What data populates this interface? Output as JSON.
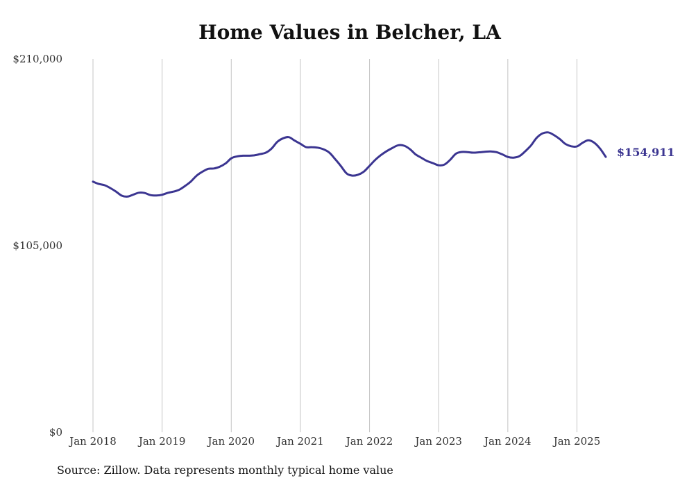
{
  "chart_data": {
    "type": "line",
    "title": "Home Values in Belcher, LA",
    "xlabel": "",
    "ylabel": "",
    "ylim": [
      0,
      210000
    ],
    "y_ticks": [
      {
        "value": 0,
        "label": "$0"
      },
      {
        "value": 105000,
        "label": "$105,000"
      },
      {
        "value": 210000,
        "label": "$210,000"
      }
    ],
    "x_ticks": [
      {
        "date": "2018-01",
        "label": "Jan 2018"
      },
      {
        "date": "2019-01",
        "label": "Jan 2019"
      },
      {
        "date": "2020-01",
        "label": "Jan 2020"
      },
      {
        "date": "2021-01",
        "label": "Jan 2021"
      },
      {
        "date": "2022-01",
        "label": "Jan 2022"
      },
      {
        "date": "2023-01",
        "label": "Jan 2023"
      },
      {
        "date": "2024-01",
        "label": "Jan 2024"
      },
      {
        "date": "2025-01",
        "label": "Jan 2025"
      }
    ],
    "xlim": [
      "2018-01",
      "2025-06"
    ],
    "grid": {
      "vertical": true,
      "horizontal": false
    },
    "series": [
      {
        "name": "",
        "color": "#3b3591",
        "x": [
          "2018-01",
          "2018-02",
          "2018-03",
          "2018-04",
          "2018-05",
          "2018-06",
          "2018-07",
          "2018-08",
          "2018-09",
          "2018-10",
          "2018-11",
          "2018-12",
          "2019-01",
          "2019-02",
          "2019-03",
          "2019-04",
          "2019-05",
          "2019-06",
          "2019-07",
          "2019-08",
          "2019-09",
          "2019-10",
          "2019-11",
          "2019-12",
          "2020-01",
          "2020-02",
          "2020-03",
          "2020-04",
          "2020-05",
          "2020-06",
          "2020-07",
          "2020-08",
          "2020-09",
          "2020-10",
          "2020-11",
          "2020-12",
          "2021-01",
          "2021-02",
          "2021-03",
          "2021-04",
          "2021-05",
          "2021-06",
          "2021-07",
          "2021-08",
          "2021-09",
          "2021-10",
          "2021-11",
          "2021-12",
          "2022-01",
          "2022-02",
          "2022-03",
          "2022-04",
          "2022-05",
          "2022-06",
          "2022-07",
          "2022-08",
          "2022-09",
          "2022-10",
          "2022-11",
          "2022-12",
          "2023-01",
          "2023-02",
          "2023-03",
          "2023-04",
          "2023-05",
          "2023-06",
          "2023-07",
          "2023-08",
          "2023-09",
          "2023-10",
          "2023-11",
          "2023-12",
          "2024-01",
          "2024-02",
          "2024-03",
          "2024-04",
          "2024-05",
          "2024-06",
          "2024-07",
          "2024-08",
          "2024-09",
          "2024-10",
          "2024-11",
          "2024-12",
          "2025-01",
          "2025-02",
          "2025-03",
          "2025-04",
          "2025-05",
          "2025-06"
        ],
        "values": [
          141000,
          139700,
          139000,
          137400,
          135400,
          133100,
          132600,
          133700,
          134800,
          134600,
          133400,
          133200,
          133600,
          134700,
          135400,
          136500,
          138600,
          141100,
          144400,
          146600,
          148200,
          148400,
          149400,
          151200,
          154100,
          155200,
          155600,
          155600,
          155800,
          156500,
          157300,
          159600,
          163400,
          165400,
          166000,
          164100,
          162300,
          160400,
          160400,
          160100,
          159200,
          157400,
          153800,
          149900,
          145700,
          144400,
          144900,
          146600,
          149900,
          153300,
          156000,
          158200,
          160000,
          161500,
          161200,
          159300,
          156300,
          154400,
          152600,
          151400,
          150200,
          150600,
          153300,
          156700,
          157700,
          157600,
          157300,
          157500,
          157800,
          158000,
          157600,
          156400,
          154900,
          154500,
          155300,
          158000,
          161300,
          165600,
          168100,
          168700,
          167200,
          165000,
          162200,
          160900,
          160800,
          162900,
          164300,
          162900,
          159600,
          154911
        ]
      }
    ],
    "annotations": [
      {
        "text": "$154,911",
        "x": "2025-06",
        "y": 154911
      }
    ]
  },
  "footer": {
    "source": "Source: Zillow. Data represents monthly typical home value"
  }
}
